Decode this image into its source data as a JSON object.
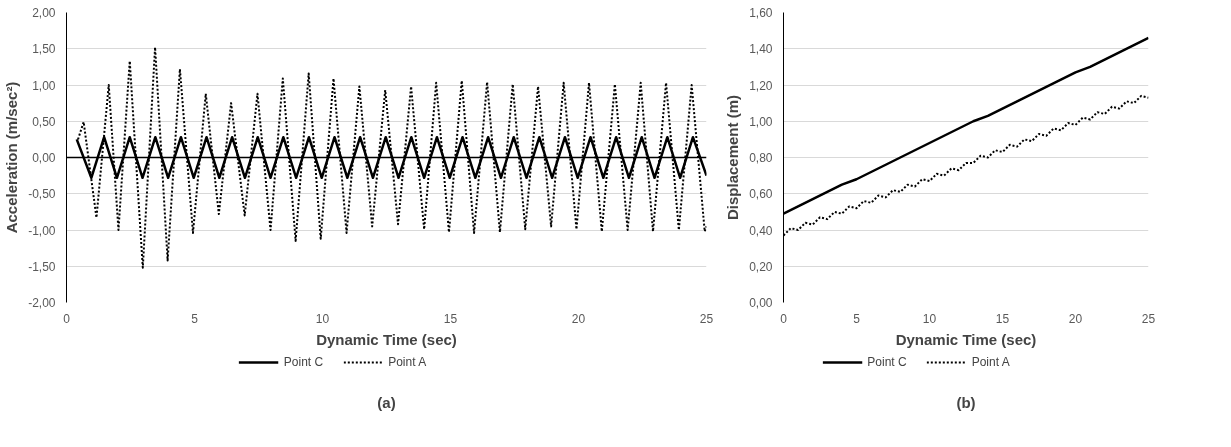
{
  "chart_data": [
    {
      "type": "line",
      "xlabel": "Dynamic Time (sec)",
      "ylabel": "Acceleration (m/sec²)",
      "annotations": [
        "(a)"
      ],
      "xlim": [
        0,
        25
      ],
      "xticks": [
        0,
        5,
        10,
        15,
        20,
        25
      ],
      "ylim": [
        -2,
        2
      ],
      "yticks": [
        {
          "value": -2,
          "label": "-2,00"
        },
        {
          "value": -1.5,
          "label": "-1,50"
        },
        {
          "value": -1,
          "label": "-1,00"
        },
        {
          "value": -0.5,
          "label": "-0,50"
        },
        {
          "value": 0,
          "label": "0,00"
        },
        {
          "value": 0.5,
          "label": "0,50"
        },
        {
          "value": 1,
          "label": "1,00"
        },
        {
          "value": 1.5,
          "label": "1,50"
        },
        {
          "value": 2,
          "label": "2,00"
        }
      ],
      "grid": "y",
      "legend": "bottom",
      "ref_lines": [
        {
          "axis": "y",
          "value": 0,
          "label": null,
          "color": "#000000"
        }
      ],
      "series": [
        {
          "name": "Point C",
          "color": "#000000",
          "line_style": "solid",
          "x": [
            0.4,
            0.97,
            1.47,
            1.97,
            2.47,
            2.97,
            3.47,
            3.97,
            4.47,
            4.97,
            5.47,
            5.97,
            6.47,
            6.97,
            7.47,
            7.97,
            8.47,
            8.97,
            9.47,
            9.97,
            10.47,
            10.97,
            11.47,
            11.97,
            12.47,
            12.97,
            13.47,
            13.97,
            14.47,
            14.97,
            15.47,
            15.97,
            16.47,
            16.97,
            17.47,
            17.97,
            18.47,
            18.97,
            19.47,
            19.97,
            20.47,
            20.97,
            21.47,
            21.97,
            22.47,
            22.97,
            23.47,
            23.97,
            24.47,
            25
          ],
          "values": [
            0.25,
            -0.28,
            0.28,
            -0.28,
            0.28,
            -0.28,
            0.28,
            -0.28,
            0.28,
            -0.28,
            0.28,
            -0.28,
            0.28,
            -0.28,
            0.28,
            -0.28,
            0.28,
            -0.28,
            0.28,
            -0.28,
            0.28,
            -0.28,
            0.28,
            -0.28,
            0.28,
            -0.28,
            0.28,
            -0.28,
            0.28,
            -0.28,
            0.28,
            -0.28,
            0.28,
            -0.28,
            0.28,
            -0.28,
            0.28,
            -0.28,
            0.28,
            -0.28,
            0.28,
            -0.28,
            0.28,
            -0.28,
            0.28,
            -0.28,
            0.28,
            -0.28,
            0.28,
            -0.25
          ]
        },
        {
          "name": "Point A",
          "color": "#000000",
          "line_style": "dotted",
          "x": [
            0.45,
            0.67,
            1.17,
            1.65,
            2.03,
            2.47,
            2.98,
            3.46,
            3.95,
            4.43,
            4.94,
            5.44,
            5.95,
            6.43,
            6.96,
            7.46,
            7.97,
            8.45,
            8.95,
            9.46,
            9.93,
            10.43,
            10.94,
            11.44,
            11.94,
            12.45,
            12.95,
            13.46,
            13.97,
            14.44,
            14.94,
            15.44,
            15.92,
            16.43,
            16.93,
            17.43,
            17.92,
            18.42,
            18.93,
            19.42,
            19.92,
            20.41,
            20.91,
            21.42,
            21.92,
            22.43,
            22.91,
            23.42,
            23.92,
            24.42,
            24.93,
            25
          ],
          "values": [
            0.25,
            0.49,
            -0.83,
            1.0,
            -1.0,
            1.33,
            -1.52,
            1.52,
            -1.42,
            1.22,
            -1.04,
            0.88,
            -0.78,
            0.75,
            -0.8,
            0.88,
            -1.0,
            1.09,
            -1.15,
            1.16,
            -1.12,
            1.09,
            -1.04,
            0.98,
            -0.95,
            0.93,
            -0.92,
            0.98,
            -0.99,
            1.03,
            -1.03,
            1.06,
            -1.04,
            1.04,
            -1.03,
            1.01,
            -0.99,
            0.98,
            -0.95,
            1.03,
            -0.99,
            1.03,
            -1.02,
            1.01,
            -1.0,
            1.03,
            -1.02,
            1.03,
            -1.0,
            1.0,
            -1.02,
            -0.95
          ]
        }
      ]
    },
    {
      "type": "line",
      "xlabel": "Dynamic Time (sec)",
      "ylabel": "Displacement (m)",
      "annotations": [
        "(b)"
      ],
      "xlim": [
        0,
        25
      ],
      "xticks": [
        0,
        5,
        10,
        15,
        20,
        25
      ],
      "ylim": [
        0,
        1.6
      ],
      "yticks": [
        {
          "value": 0,
          "label": "0,00"
        },
        {
          "value": 0.2,
          "label": "0,20"
        },
        {
          "value": 0.4,
          "label": "0,40"
        },
        {
          "value": 0.6,
          "label": "0,60"
        },
        {
          "value": 0.8,
          "label": "0,80"
        },
        {
          "value": 1,
          "label": "1,00"
        },
        {
          "value": 1.2,
          "label": "1,20"
        },
        {
          "value": 1.4,
          "label": "1,40"
        },
        {
          "value": 1.6,
          "label": "1,60"
        }
      ],
      "grid": "y",
      "legend": "bottom",
      "series": [
        {
          "name": "Point C",
          "color": "#000000",
          "line_style": "solid",
          "x": [
            0,
            1,
            2,
            3,
            4,
            5,
            6,
            7,
            8,
            9,
            10,
            11,
            12,
            13,
            14,
            15,
            16,
            17,
            18,
            19,
            20,
            21,
            22,
            23,
            24,
            25
          ],
          "values": [
            0.49,
            0.53,
            0.57,
            0.61,
            0.65,
            0.68,
            0.72,
            0.76,
            0.8,
            0.84,
            0.88,
            0.92,
            0.96,
            1.0,
            1.03,
            1.07,
            1.11,
            1.15,
            1.19,
            1.23,
            1.27,
            1.3,
            1.34,
            1.38,
            1.42,
            1.46
          ]
        },
        {
          "name": "Point A",
          "color": "#000000",
          "line_style": "dotted",
          "x": [
            0,
            0.5,
            1,
            1.5,
            2,
            2.5,
            3,
            3.5,
            4,
            4.5,
            5,
            5.5,
            6,
            6.5,
            7,
            7.5,
            8,
            8.5,
            9,
            9.5,
            10,
            10.5,
            11,
            11.5,
            12,
            12.5,
            13,
            13.5,
            14,
            14.5,
            15,
            15.5,
            16,
            16.5,
            17,
            17.5,
            18,
            18.5,
            19,
            19.5,
            20,
            20.5,
            21,
            21.5,
            22,
            22.5,
            23,
            23.5,
            24,
            24.5,
            25
          ],
          "values": [
            0.37,
            0.41,
            0.4,
            0.44,
            0.43,
            0.47,
            0.46,
            0.5,
            0.49,
            0.53,
            0.52,
            0.56,
            0.55,
            0.59,
            0.58,
            0.62,
            0.61,
            0.65,
            0.64,
            0.68,
            0.67,
            0.71,
            0.7,
            0.74,
            0.73,
            0.77,
            0.77,
            0.81,
            0.8,
            0.84,
            0.83,
            0.87,
            0.86,
            0.9,
            0.89,
            0.93,
            0.92,
            0.96,
            0.95,
            0.99,
            0.98,
            1.02,
            1.01,
            1.05,
            1.04,
            1.08,
            1.07,
            1.11,
            1.1,
            1.14,
            1.13
          ]
        }
      ]
    }
  ]
}
